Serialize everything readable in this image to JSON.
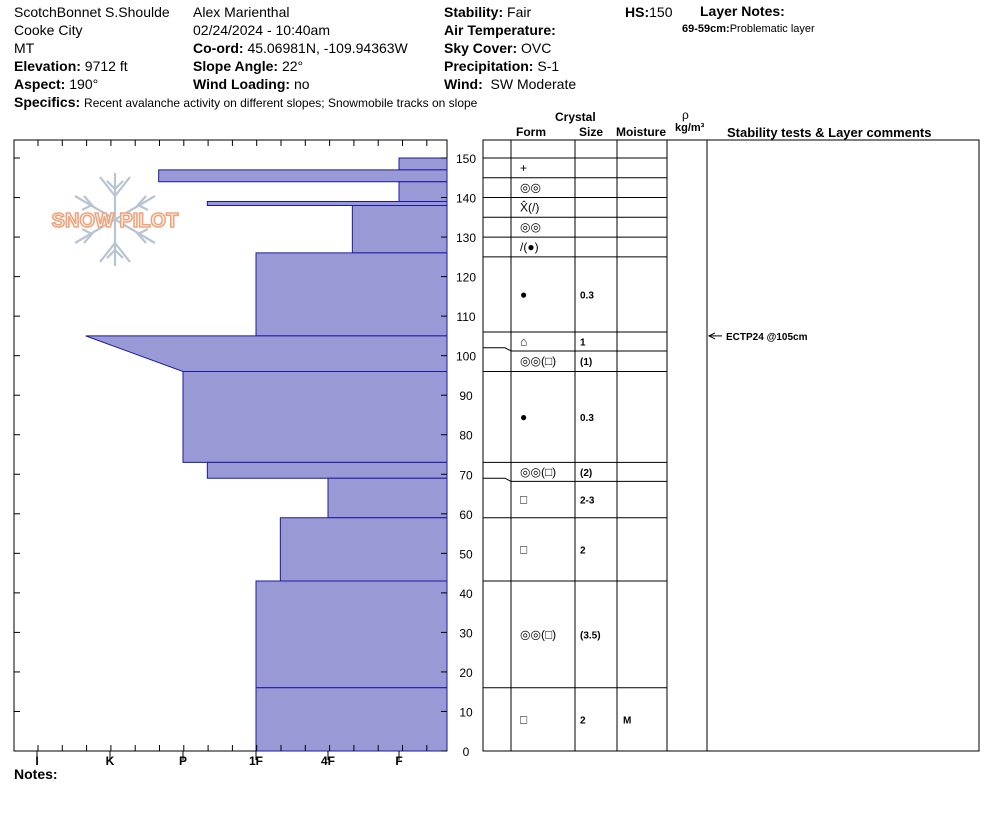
{
  "header": {
    "location": "ScotchBonnet S.Shoulde",
    "range": "Cooke City",
    "state": "MT",
    "elevation_label": "Elevation:",
    "elevation": "9712 ft",
    "aspect_label": "Aspect:",
    "aspect": "190°",
    "observer": "Alex Marienthal",
    "datetime": "02/24/2024 - 10:40am",
    "coord_label": "Co-ord:",
    "coord": "45.06981N, -109.94363W",
    "slope_label": "Slope Angle:",
    "slope": "22°",
    "windload_label": "Wind Loading:",
    "windload": "no",
    "stability_label": "Stability:",
    "stability": "Fair",
    "airtemp_label": "Air Temperature:",
    "airtemp": "",
    "sky_label": "Sky Cover:",
    "sky": "OVC",
    "precip_label": "Precipitation:",
    "precip": "S-1",
    "wind_label": "Wind:",
    "wind": "SW Moderate",
    "hs_label": "HS:",
    "hs": "150",
    "layer_notes_label": "Layer Notes:",
    "layer_note_range": "69-59cm:",
    "layer_note_text": "Problematic layer",
    "specifics_label": "Specifics:",
    "specifics": "Recent avalanche activity on different slopes; Snowmobile tracks on slope"
  },
  "columns": {
    "crystal": "Crystal",
    "form": "Form",
    "size": "Size",
    "moisture": "Moisture",
    "rho": "ρ",
    "density": "kg/m³",
    "tests": "Stability tests & Layer comments"
  },
  "notes_label": "Notes:",
  "logo_text": "SNOW PILOT",
  "colors": {
    "hardness_fill": "#9999d6",
    "hardness_stroke": "#1a1aa0",
    "logo": "#f2a27a",
    "flake": "#b8c4d2"
  },
  "chart_data": {
    "type": "hardness_profile",
    "ylabel": "",
    "ylim": [
      0,
      150
    ],
    "y_ticks": [
      0,
      10,
      20,
      30,
      40,
      50,
      60,
      70,
      80,
      90,
      100,
      110,
      120,
      130,
      140,
      150
    ],
    "hardness_scale": [
      "I",
      "K",
      "P",
      "1F",
      "4F",
      "F"
    ],
    "layers": [
      {
        "top": 150,
        "bottom": 147,
        "hardness_top": "F",
        "hardness_bottom": "F"
      },
      {
        "top": 147,
        "bottom": 144,
        "hardness_top": "P+",
        "hardness_bottom": "P+"
      },
      {
        "top": 144,
        "bottom": 139,
        "hardness_top": "F",
        "hardness_bottom": "F"
      },
      {
        "top": 139,
        "bottom": 138,
        "hardness_top": "P-",
        "hardness_bottom": "P-"
      },
      {
        "top": 138,
        "bottom": 126,
        "hardness_top": "4F-",
        "hardness_bottom": "4F-"
      },
      {
        "top": 126,
        "bottom": 105,
        "hardness_top": "1F",
        "hardness_bottom": "1F"
      },
      {
        "top": 105,
        "bottom": 96,
        "hardness_top": "K+",
        "hardness_bottom": "P"
      },
      {
        "top": 96,
        "bottom": 73,
        "hardness_top": "P",
        "hardness_bottom": "P"
      },
      {
        "top": 73,
        "bottom": 69,
        "hardness_top": "P-",
        "hardness_bottom": "P-"
      },
      {
        "top": 69,
        "bottom": 59,
        "hardness_top": "4F",
        "hardness_bottom": "4F"
      },
      {
        "top": 59,
        "bottom": 43,
        "hardness_top": "1F-",
        "hardness_bottom": "1F-"
      },
      {
        "top": 43,
        "bottom": 16,
        "hardness_top": "1F",
        "hardness_bottom": "1F"
      },
      {
        "top": 16,
        "bottom": 0,
        "hardness_top": "1F",
        "hardness_bottom": "1F"
      }
    ],
    "grain_layers": [
      {
        "top": 150,
        "bottom": 145,
        "form": "+",
        "size": "",
        "moisture": ""
      },
      {
        "top": 145,
        "bottom": 140,
        "form": "◎◎",
        "size": "",
        "moisture": ""
      },
      {
        "top": 140,
        "bottom": 135,
        "form": "X̂(/)",
        "size": "",
        "moisture": ""
      },
      {
        "top": 135,
        "bottom": 130,
        "form": "◎◎",
        "size": "",
        "moisture": ""
      },
      {
        "top": 130,
        "bottom": 125,
        "form": "/(●)",
        "size": "",
        "moisture": ""
      },
      {
        "top": 125,
        "bottom": 106,
        "form": "●",
        "size": "0.3",
        "moisture": ""
      },
      {
        "top": 106,
        "bottom": 102,
        "form": "⌂",
        "size": "1",
        "moisture": ""
      },
      {
        "top": 102,
        "bottom": 96,
        "form": "◎◎(□)",
        "size": "(1)",
        "moisture": ""
      },
      {
        "top": 96,
        "bottom": 73,
        "form": "●",
        "size": "0.3",
        "moisture": ""
      },
      {
        "top": 73,
        "bottom": 69,
        "form": "◎◎(□)",
        "size": "(2)",
        "moisture": ""
      },
      {
        "top": 69,
        "bottom": 59,
        "form": "□",
        "size": "2-3",
        "moisture": ""
      },
      {
        "top": 59,
        "bottom": 43,
        "form": "□",
        "size": "2",
        "moisture": ""
      },
      {
        "top": 43,
        "bottom": 16,
        "form": "◎◎(□)",
        "size": "(3.5)",
        "moisture": ""
      },
      {
        "top": 16,
        "bottom": 0,
        "form": "□",
        "size": "2",
        "moisture": "M"
      }
    ],
    "tests": [
      {
        "depth": 105,
        "text": "ECTP24 @105cm"
      }
    ]
  }
}
